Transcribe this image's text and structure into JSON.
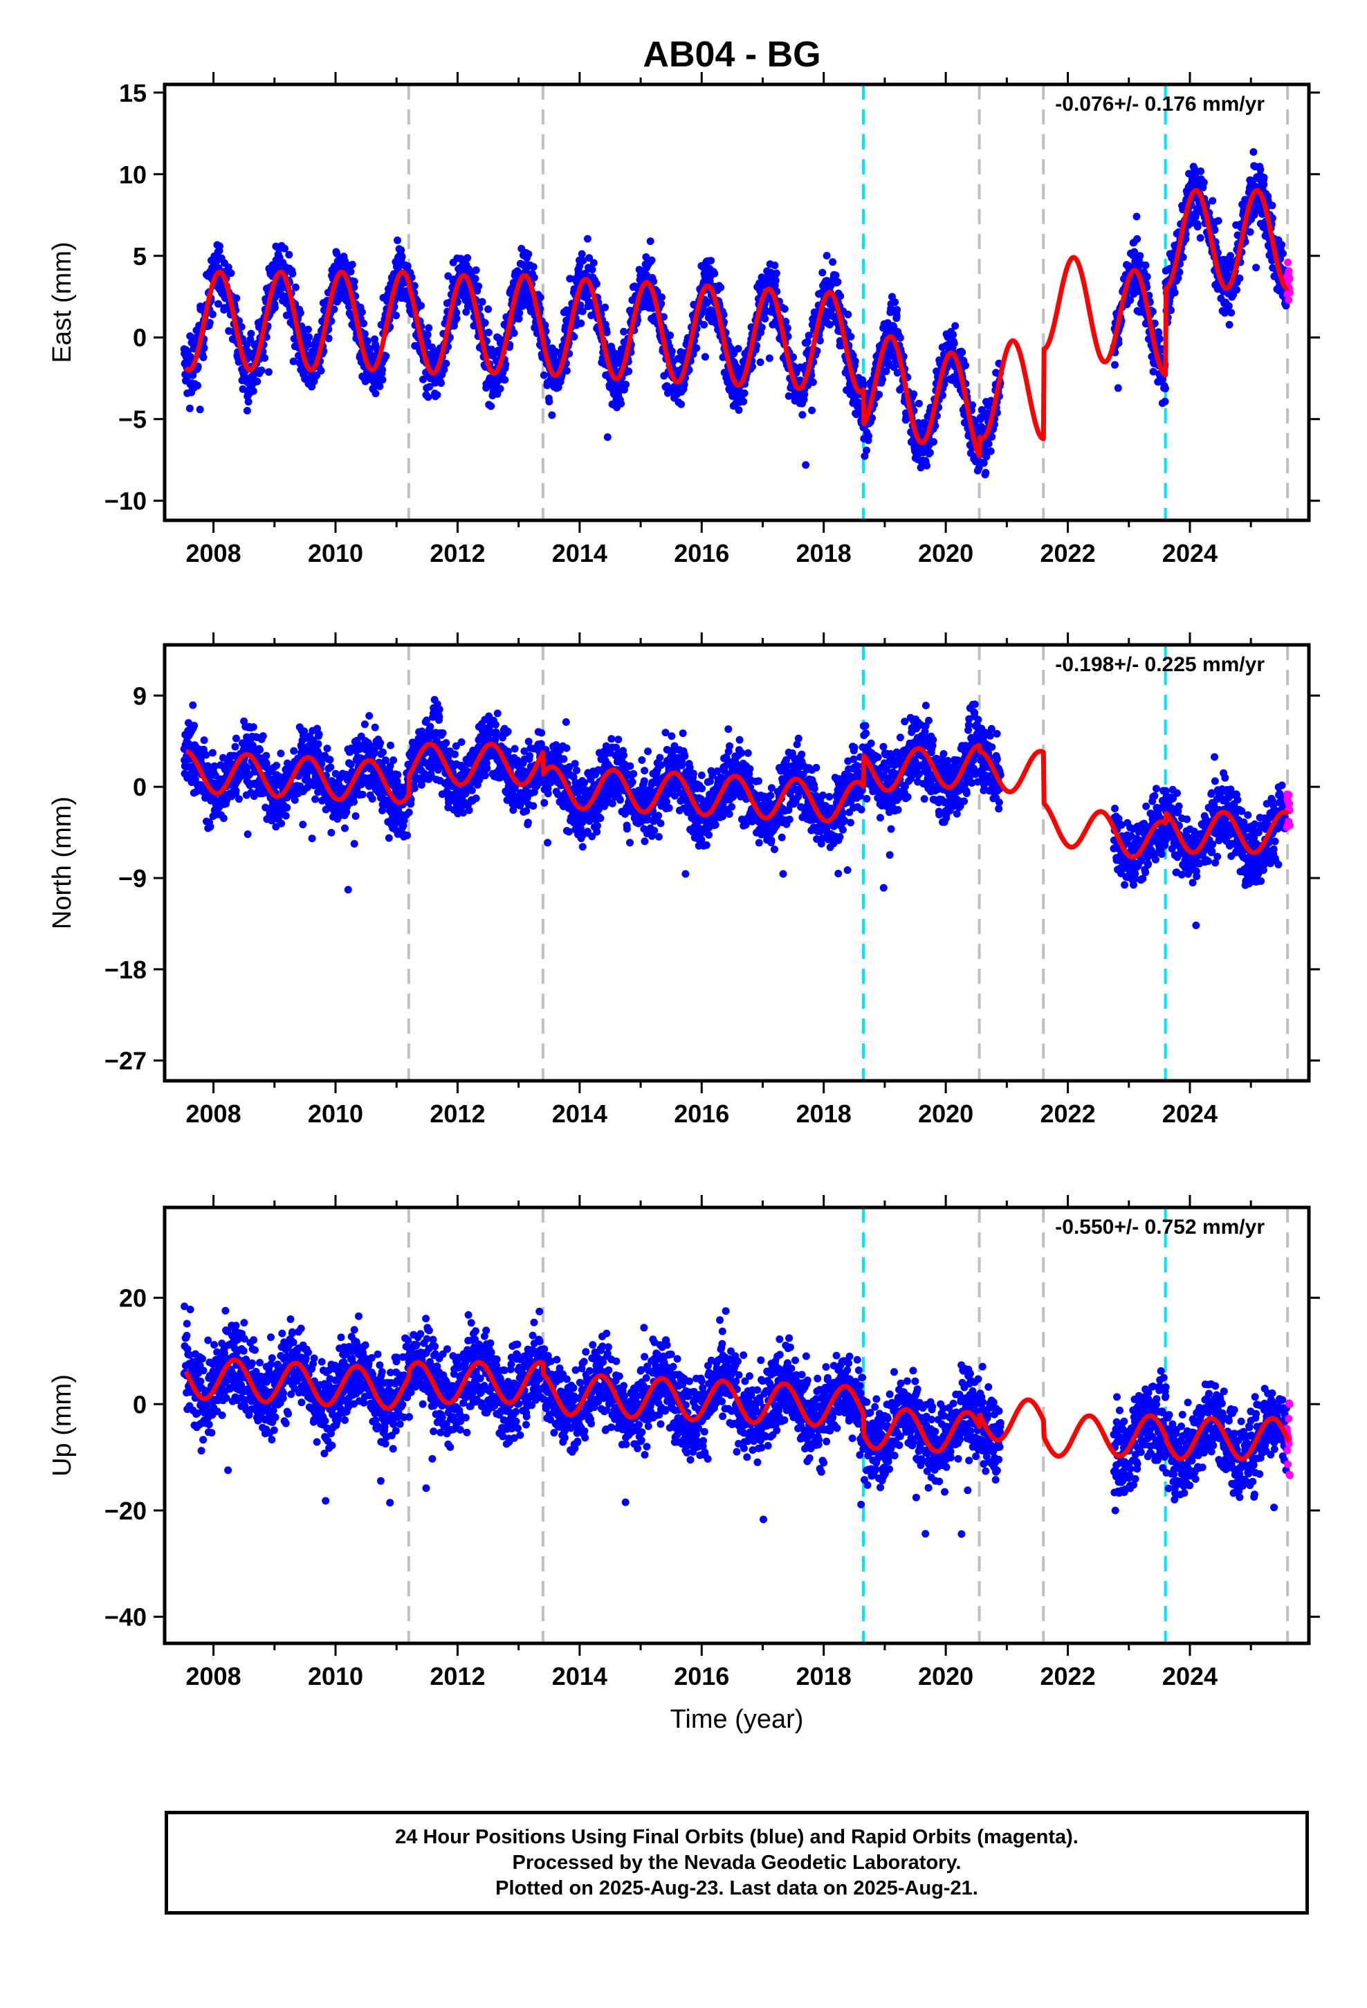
{
  "chart_data": {
    "type": "scatter",
    "title": "AB04 - BG",
    "xlabel": "Time (year)",
    "xlim": [
      2007.2,
      2025.95
    ],
    "x_ticks": [
      2008,
      2010,
      2012,
      2014,
      2016,
      2018,
      2020,
      2022,
      2024
    ],
    "gray_dashed_lines": [
      2011.2,
      2013.4,
      2020.55,
      2021.6,
      2025.6
    ],
    "cyan_dashed_lines": [
      2018.65,
      2023.6
    ],
    "colors": {
      "final_orbits": "#0000ff",
      "rapid_orbits": "#ff00ff",
      "model": "#ff0000",
      "gray_line": "#c0c0c0",
      "cyan_line": "#00e5ff"
    },
    "panels": [
      {
        "ylabel": "East (mm)",
        "ylim": [
          -11.2,
          15.5
        ],
        "y_ticks": [
          -10,
          -5,
          0,
          5,
          10,
          15
        ],
        "rate_text": "-0.076+/- 0.176 mm/yr",
        "amplitude": 3.0,
        "phase": 0.85,
        "noise": 1.3,
        "blue_gap": [
          2020.9,
          2022.75
        ],
        "rapid_start": 2025.5,
        "segments": [
          {
            "t0": 2007.5,
            "t1": 2011.2,
            "offset": 1.0,
            "slope": 0.0
          },
          {
            "t0": 2011.2,
            "t1": 2013.4,
            "offset": 0.8,
            "slope": 0.0
          },
          {
            "t0": 2013.4,
            "t1": 2018.65,
            "offset": 0.7,
            "slope": -0.2
          },
          {
            "t0": 2018.65,
            "t1": 2020.55,
            "offset": -2.5,
            "slope": -1.0
          },
          {
            "t0": 2020.55,
            "t1": 2021.6,
            "offset": -3.2,
            "slope": 0.0
          },
          {
            "t0": 2021.6,
            "t1": 2023.6,
            "offset": 2.3,
            "slope": -0.8
          },
          {
            "t0": 2023.6,
            "t1": 2025.7,
            "offset": 6.0,
            "slope": 0.0
          }
        ]
      },
      {
        "ylabel": "North (mm)",
        "ylim": [
          -29,
          14
        ],
        "y_ticks": [
          -27,
          -18,
          -9,
          0,
          9
        ],
        "rate_text": "-0.198+/- 0.225 mm/yr",
        "amplitude": 2.0,
        "phase": 0.3,
        "noise": 2.4,
        "blue_gap": [
          2020.9,
          2022.75
        ],
        "rapid_start": 2025.5,
        "segments": [
          {
            "t0": 2007.5,
            "t1": 2011.2,
            "offset": 1.5,
            "slope": -0.3
          },
          {
            "t0": 2011.2,
            "t1": 2013.4,
            "offset": 2.2,
            "slope": 0.0
          },
          {
            "t0": 2013.4,
            "t1": 2018.65,
            "offset": 0.0,
            "slope": -0.3
          },
          {
            "t0": 2018.65,
            "t1": 2020.55,
            "offset": 1.5,
            "slope": 0.3
          },
          {
            "t0": 2020.55,
            "t1": 2021.6,
            "offset": 1.5,
            "slope": 0.0
          },
          {
            "t0": 2021.6,
            "t1": 2023.6,
            "offset": -3.5,
            "slope": -1.0
          },
          {
            "t0": 2023.6,
            "t1": 2025.7,
            "offset": -4.5,
            "slope": 0.0
          }
        ]
      },
      {
        "ylabel": "Up (mm)",
        "ylim": [
          -45,
          37
        ],
        "y_ticks": [
          -40,
          -20,
          0,
          20
        ],
        "rate_text": "-0.550+/- 0.752 mm/yr",
        "amplitude": 3.8,
        "phase": 0.1,
        "noise": 5.5,
        "blue_gap": [
          2020.9,
          2022.75
        ],
        "rapid_start": 2025.5,
        "segments": [
          {
            "t0": 2007.5,
            "t1": 2011.2,
            "offset": 5.0,
            "slope": -0.6
          },
          {
            "t0": 2011.2,
            "t1": 2013.4,
            "offset": 4.0,
            "slope": 0.0
          },
          {
            "t0": 2013.4,
            "t1": 2018.65,
            "offset": 2.0,
            "slope": -0.5
          },
          {
            "t0": 2018.65,
            "t1": 2020.55,
            "offset": -4.5,
            "slope": -0.5
          },
          {
            "t0": 2020.55,
            "t1": 2021.6,
            "offset": -3.0,
            "slope": 0.0
          },
          {
            "t0": 2021.6,
            "t1": 2023.6,
            "offset": -6.0,
            "slope": 0.0
          },
          {
            "t0": 2023.6,
            "t1": 2025.7,
            "offset": -6.5,
            "slope": 0.0
          }
        ]
      }
    ]
  },
  "footer": {
    "line1": "24 Hour Positions Using Final Orbits (blue) and Rapid Orbits (magenta).",
    "line2": "Processed by the Nevada Geodetic Laboratory.",
    "line3": "Plotted on 2025-Aug-23. Last data on 2025-Aug-21."
  }
}
